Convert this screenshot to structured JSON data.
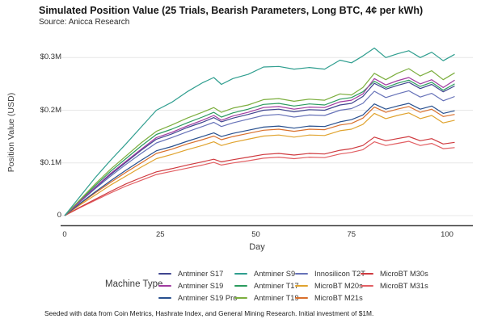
{
  "header": {
    "title": "Simulated Position Value (25 Trials, Bearish Parameters, Long BTC, 4¢ per kWh)",
    "subtitle": "Source: Anicca Research"
  },
  "footer": {
    "note": "Seeded with data from Coin Metrics, Hashrate Index, and General Mining Research. Initial investment of $1M."
  },
  "axes": {
    "y": {
      "label": "Position Value (USD)",
      "ticks": [
        {
          "label": "0",
          "value": 0
        },
        {
          "label": "$0.1M",
          "value": 0.1
        },
        {
          "label": "$0.2M",
          "value": 0.2
        },
        {
          "label": "$0.3M",
          "value": 0.3
        }
      ]
    },
    "x": {
      "label": "Day",
      "ticks": [
        {
          "label": "0",
          "day": 0
        },
        {
          "label": "25",
          "day": 25
        },
        {
          "label": "50",
          "day": 50
        },
        {
          "label": "75",
          "day": 75
        },
        {
          "label": "100",
          "day": 100
        }
      ]
    }
  },
  "legend": {
    "title": "Machine Type",
    "columns": [
      [
        "Antminer S17",
        "Antminer S19",
        "Antminer S19 Pro"
      ],
      [
        "Antminer S9",
        "Antminer T17",
        "Antminer T19"
      ],
      [
        "Innosilicon T2T",
        "MicroBT M20s",
        "MicroBT M21s"
      ],
      [
        "MicroBT M30s",
        "MicroBT M31s"
      ]
    ],
    "column_lefts": [
      196,
      290,
      365,
      446
    ]
  },
  "chart_data": {
    "type": "line",
    "title": "Simulated Position Value (25 Trials, Bearish Parameters, Long BTC, 4¢ per kWh)",
    "xlabel": "Day",
    "ylabel": "Position Value (USD)",
    "xlim": [
      0,
      102
    ],
    "ylim": [
      0,
      0.33
    ],
    "units": "millions USD",
    "grid": "horizontal",
    "legend_position": "bottom",
    "x_days": [
      0,
      4,
      8,
      12,
      16,
      20,
      24,
      28,
      32,
      36,
      39,
      41,
      44,
      48,
      52,
      56,
      60,
      64,
      68,
      72,
      75,
      78,
      81,
      84,
      87,
      90,
      93,
      96,
      99,
      102
    ],
    "series": [
      {
        "name": "MicroBT M31s",
        "color": "#e25f63",
        "values": [
          0,
          0.015,
          0.029,
          0.043,
          0.056,
          0.067,
          0.078,
          0.084,
          0.09,
          0.096,
          0.101,
          0.096,
          0.1,
          0.104,
          0.109,
          0.111,
          0.108,
          0.111,
          0.11,
          0.117,
          0.12,
          0.125,
          0.14,
          0.133,
          0.137,
          0.141,
          0.133,
          0.137,
          0.127,
          0.129
        ]
      },
      {
        "name": "MicroBT M30s",
        "color": "#cf3a3f",
        "values": [
          0,
          0.016,
          0.031,
          0.046,
          0.06,
          0.072,
          0.083,
          0.089,
          0.096,
          0.102,
          0.107,
          0.102,
          0.106,
          0.111,
          0.116,
          0.118,
          0.115,
          0.118,
          0.117,
          0.124,
          0.127,
          0.133,
          0.149,
          0.142,
          0.146,
          0.15,
          0.142,
          0.146,
          0.136,
          0.139
        ]
      },
      {
        "name": "MicroBT M20s",
        "color": "#e0a32e",
        "values": [
          0,
          0.02,
          0.039,
          0.058,
          0.075,
          0.092,
          0.108,
          0.116,
          0.125,
          0.133,
          0.14,
          0.133,
          0.139,
          0.145,
          0.151,
          0.153,
          0.149,
          0.153,
          0.152,
          0.161,
          0.164,
          0.173,
          0.194,
          0.184,
          0.19,
          0.195,
          0.184,
          0.19,
          0.176,
          0.181
        ]
      },
      {
        "name": "MicroBT M21s",
        "color": "#d96f2b",
        "values": [
          0,
          0.022,
          0.043,
          0.063,
          0.082,
          0.1,
          0.118,
          0.126,
          0.136,
          0.144,
          0.151,
          0.144,
          0.15,
          0.156,
          0.162,
          0.164,
          0.16,
          0.164,
          0.163,
          0.172,
          0.175,
          0.185,
          0.206,
          0.196,
          0.202,
          0.207,
          0.196,
          0.202,
          0.188,
          0.192
        ]
      },
      {
        "name": "Antminer S19 Pro",
        "color": "#28508f",
        "values": [
          0,
          0.023,
          0.045,
          0.066,
          0.086,
          0.105,
          0.123,
          0.131,
          0.141,
          0.15,
          0.157,
          0.15,
          0.156,
          0.162,
          0.168,
          0.17,
          0.166,
          0.17,
          0.169,
          0.178,
          0.182,
          0.191,
          0.212,
          0.202,
          0.208,
          0.213,
          0.202,
          0.208,
          0.194,
          0.199
        ]
      },
      {
        "name": "Innosilicon T2T",
        "color": "#6672b8",
        "values": [
          0,
          0.026,
          0.051,
          0.075,
          0.097,
          0.118,
          0.138,
          0.148,
          0.159,
          0.169,
          0.177,
          0.169,
          0.176,
          0.183,
          0.19,
          0.192,
          0.187,
          0.191,
          0.19,
          0.2,
          0.203,
          0.213,
          0.236,
          0.224,
          0.231,
          0.237,
          0.225,
          0.232,
          0.218,
          0.226
        ]
      },
      {
        "name": "Antminer S17",
        "color": "#3f458f",
        "values": [
          0,
          0.027,
          0.053,
          0.078,
          0.101,
          0.124,
          0.145,
          0.155,
          0.167,
          0.177,
          0.186,
          0.178,
          0.185,
          0.192,
          0.2,
          0.202,
          0.197,
          0.201,
          0.2,
          0.21,
          0.213,
          0.226,
          0.251,
          0.24,
          0.247,
          0.253,
          0.241,
          0.249,
          0.235,
          0.246
        ]
      },
      {
        "name": "Antminer T17",
        "color": "#2b9b5e",
        "values": [
          0,
          0.028,
          0.057,
          0.084,
          0.108,
          0.132,
          0.154,
          0.164,
          0.176,
          0.187,
          0.196,
          0.187,
          0.195,
          0.202,
          0.211,
          0.213,
          0.208,
          0.212,
          0.21,
          0.221,
          0.224,
          0.235,
          0.255,
          0.243,
          0.251,
          0.257,
          0.245,
          0.253,
          0.238,
          0.25
        ]
      },
      {
        "name": "Antminer S19",
        "color": "#a03ba0",
        "values": [
          0,
          0.027,
          0.054,
          0.08,
          0.103,
          0.126,
          0.148,
          0.158,
          0.17,
          0.181,
          0.19,
          0.181,
          0.189,
          0.196,
          0.205,
          0.207,
          0.202,
          0.206,
          0.205,
          0.216,
          0.219,
          0.231,
          0.26,
          0.248,
          0.256,
          0.262,
          0.25,
          0.258,
          0.243,
          0.257
        ]
      },
      {
        "name": "Antminer T19",
        "color": "#7cae3e",
        "values": [
          0,
          0.03,
          0.06,
          0.088,
          0.113,
          0.138,
          0.16,
          0.172,
          0.185,
          0.196,
          0.205,
          0.196,
          0.204,
          0.21,
          0.22,
          0.222,
          0.217,
          0.221,
          0.219,
          0.231,
          0.229,
          0.243,
          0.27,
          0.258,
          0.27,
          0.279,
          0.265,
          0.275,
          0.258,
          0.271
        ]
      },
      {
        "name": "Antminer S9",
        "color": "#2f9e8f",
        "values": [
          0,
          0.036,
          0.072,
          0.105,
          0.136,
          0.168,
          0.2,
          0.215,
          0.235,
          0.252,
          0.262,
          0.249,
          0.26,
          0.268,
          0.282,
          0.283,
          0.278,
          0.281,
          0.278,
          0.295,
          0.29,
          0.303,
          0.318,
          0.3,
          0.307,
          0.313,
          0.3,
          0.31,
          0.294,
          0.306
        ]
      }
    ]
  },
  "style": {
    "gridline_color": "#e7e7e7",
    "axis_line_color": "#404040",
    "background": "#ffffff"
  }
}
